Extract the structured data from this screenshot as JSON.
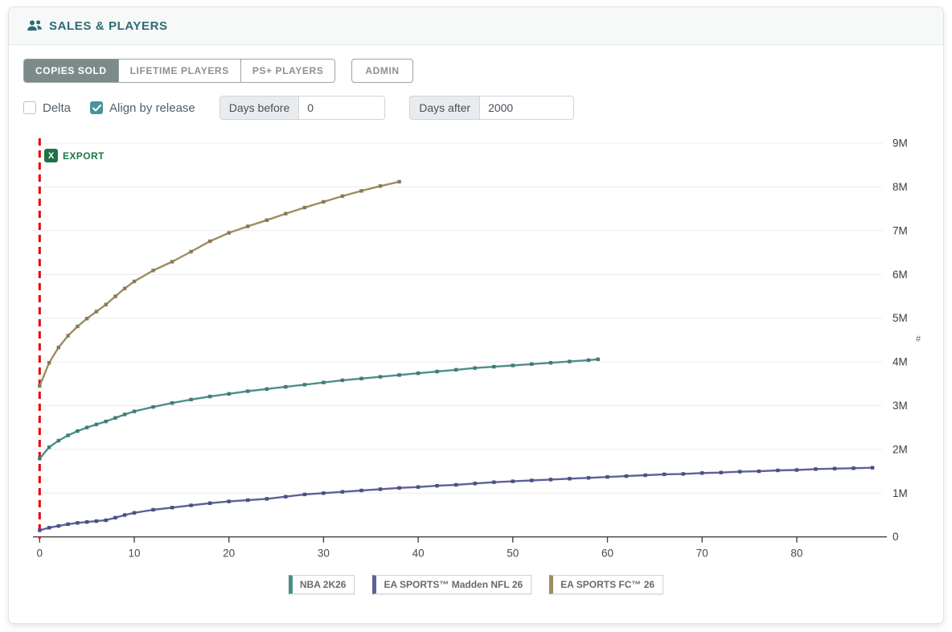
{
  "header": {
    "title": "SALES & PLAYERS"
  },
  "tabs": [
    {
      "label": "COPIES SOLD",
      "active": true
    },
    {
      "label": "LIFETIME PLAYERS",
      "active": false
    },
    {
      "label": "PS+ PLAYERS",
      "active": false
    }
  ],
  "admin_button": {
    "label": "ADMIN"
  },
  "controls": {
    "delta": {
      "label": "Delta",
      "checked": false
    },
    "align_by_release": {
      "label": "Align by release",
      "checked": true
    },
    "days_before": {
      "label": "Days before",
      "value": "0"
    },
    "days_after": {
      "label": "Days after",
      "value": "2000"
    }
  },
  "export_button": {
    "label": "EXPORT",
    "icon": "excel-file-icon",
    "color": "#1e7145"
  },
  "colors": {
    "accent_teal": "#2e6b72",
    "active_tab_bg": "#7c8b8a",
    "release_line": "#e60000",
    "grid": "#ececec",
    "axis": "#444444"
  },
  "chart_data": {
    "type": "line",
    "title": "",
    "xlabel": "",
    "ylabel": "#",
    "x_ticks": [
      0,
      10,
      20,
      30,
      40,
      50,
      60,
      70,
      80
    ],
    "y_ticks": [
      "0",
      "1M",
      "2M",
      "3M",
      "4M",
      "5M",
      "6M",
      "7M",
      "8M",
      "9M"
    ],
    "xlim": [
      0,
      88
    ],
    "ylim_millions": [
      0,
      9
    ],
    "grid": "horizontal",
    "legend_position": "bottom",
    "release_day_line": {
      "x": 0,
      "style": "dashed",
      "color": "#e60000"
    },
    "values_unit": "millions of copies sold vs days after release",
    "series": [
      {
        "name": "NBA 2K26",
        "color": "#4e8e89",
        "marker_color": "#3d7d78",
        "points": [
          [
            0,
            1.79
          ],
          [
            1,
            2.05
          ],
          [
            2,
            2.2
          ],
          [
            3,
            2.32
          ],
          [
            4,
            2.42
          ],
          [
            5,
            2.5
          ],
          [
            6,
            2.57
          ],
          [
            7,
            2.64
          ],
          [
            8,
            2.72
          ],
          [
            9,
            2.8
          ],
          [
            10,
            2.87
          ],
          [
            12,
            2.97
          ],
          [
            14,
            3.06
          ],
          [
            16,
            3.14
          ],
          [
            18,
            3.21
          ],
          [
            20,
            3.27
          ],
          [
            22,
            3.33
          ],
          [
            24,
            3.38
          ],
          [
            26,
            3.43
          ],
          [
            28,
            3.48
          ],
          [
            30,
            3.53
          ],
          [
            32,
            3.58
          ],
          [
            34,
            3.62
          ],
          [
            36,
            3.66
          ],
          [
            38,
            3.7
          ],
          [
            40,
            3.74
          ],
          [
            42,
            3.78
          ],
          [
            44,
            3.82
          ],
          [
            46,
            3.86
          ],
          [
            48,
            3.89
          ],
          [
            50,
            3.92
          ],
          [
            52,
            3.95
          ],
          [
            54,
            3.98
          ],
          [
            56,
            4.01
          ],
          [
            58,
            4.04
          ],
          [
            59,
            4.06
          ]
        ]
      },
      {
        "name": "EA SPORTS™ Madden NFL 26",
        "color": "#5d6295",
        "marker_color": "#4a4f85",
        "points": [
          [
            0,
            0.15
          ],
          [
            1,
            0.21
          ],
          [
            2,
            0.25
          ],
          [
            3,
            0.29
          ],
          [
            4,
            0.32
          ],
          [
            5,
            0.34
          ],
          [
            6,
            0.36
          ],
          [
            7,
            0.38
          ],
          [
            8,
            0.44
          ],
          [
            9,
            0.5
          ],
          [
            10,
            0.55
          ],
          [
            12,
            0.62
          ],
          [
            14,
            0.67
          ],
          [
            16,
            0.72
          ],
          [
            18,
            0.77
          ],
          [
            20,
            0.81
          ],
          [
            22,
            0.84
          ],
          [
            24,
            0.87
          ],
          [
            26,
            0.92
          ],
          [
            28,
            0.97
          ],
          [
            30,
            1.0
          ],
          [
            32,
            1.03
          ],
          [
            34,
            1.06
          ],
          [
            36,
            1.09
          ],
          [
            38,
            1.12
          ],
          [
            40,
            1.14
          ],
          [
            42,
            1.17
          ],
          [
            44,
            1.19
          ],
          [
            46,
            1.22
          ],
          [
            48,
            1.25
          ],
          [
            50,
            1.27
          ],
          [
            52,
            1.29
          ],
          [
            54,
            1.31
          ],
          [
            56,
            1.33
          ],
          [
            58,
            1.35
          ],
          [
            60,
            1.37
          ],
          [
            62,
            1.39
          ],
          [
            64,
            1.41
          ],
          [
            66,
            1.43
          ],
          [
            68,
            1.44
          ],
          [
            70,
            1.46
          ],
          [
            72,
            1.47
          ],
          [
            74,
            1.49
          ],
          [
            76,
            1.5
          ],
          [
            78,
            1.52
          ],
          [
            80,
            1.53
          ],
          [
            82,
            1.55
          ],
          [
            84,
            1.56
          ],
          [
            86,
            1.57
          ],
          [
            88,
            1.58
          ]
        ]
      },
      {
        "name": "EA SPORTS FC™ 26",
        "color": "#9d8c64",
        "marker_color": "#8a7a52",
        "points": [
          [
            0,
            3.45
          ],
          [
            1,
            3.98
          ],
          [
            2,
            4.33
          ],
          [
            3,
            4.6
          ],
          [
            4,
            4.81
          ],
          [
            5,
            4.99
          ],
          [
            6,
            5.15
          ],
          [
            7,
            5.31
          ],
          [
            8,
            5.5
          ],
          [
            9,
            5.68
          ],
          [
            10,
            5.84
          ],
          [
            12,
            6.09
          ],
          [
            14,
            6.29
          ],
          [
            16,
            6.52
          ],
          [
            18,
            6.76
          ],
          [
            20,
            6.95
          ],
          [
            22,
            7.1
          ],
          [
            24,
            7.24
          ],
          [
            26,
            7.39
          ],
          [
            28,
            7.53
          ],
          [
            30,
            7.66
          ],
          [
            32,
            7.79
          ],
          [
            34,
            7.91
          ],
          [
            36,
            8.02
          ],
          [
            38,
            8.12
          ]
        ]
      }
    ]
  }
}
